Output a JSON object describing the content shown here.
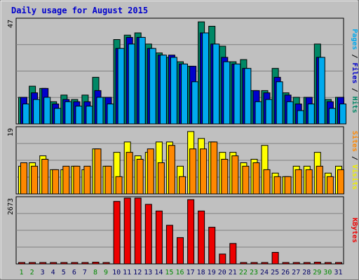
{
  "chart_data": {
    "type": "bar",
    "title": "Daily usage for August 2015",
    "categories": [
      "1",
      "2",
      "3",
      "4",
      "5",
      "6",
      "7",
      "8",
      "9",
      "10",
      "11",
      "12",
      "13",
      "14",
      "15",
      "16",
      "17",
      "18",
      "19",
      "20",
      "21",
      "22",
      "23",
      "24",
      "25",
      "26",
      "27",
      "28",
      "29",
      "30",
      "31"
    ],
    "weekend_days": [
      1,
      2,
      8,
      9,
      15,
      16,
      22,
      23,
      29,
      30
    ],
    "panels": [
      {
        "name": "hits-files-pages",
        "ymax_label": "47",
        "ymax": 47,
        "right_label_parts": [
          {
            "text": "Pages",
            "color": "#00aaee"
          },
          {
            "text": " / ",
            "color": "#000000"
          },
          {
            "text": "Files",
            "color": "#0000cc"
          },
          {
            "text": " / ",
            "color": "#000000"
          },
          {
            "text": "Hits",
            "color": "#008866"
          }
        ],
        "series": [
          {
            "name": "Hits",
            "color": "#008866",
            "values": [
              12,
              17,
              16,
              10,
              13,
              11,
              13,
              21,
              12,
              38,
              40,
              41,
              36,
              32,
              30,
              28,
              26,
              46,
              44,
              35,
              28,
              29,
              15,
              15,
              25,
              14,
              12,
              12,
              36,
              11,
              12
            ]
          },
          {
            "name": "Files",
            "color": "#0000cc",
            "values": [
              12,
              14,
              16,
              9,
              11,
              10,
              10,
              15,
              12,
              34,
              39,
              39,
              34,
              31,
              31,
              27,
              26,
              41,
              36,
              30,
              27,
              25,
              15,
              14,
              21,
              13,
              9,
              12,
              30,
              10,
              12
            ]
          },
          {
            "name": "Pages",
            "color": "#00aaee",
            "values": [
              9,
              11,
              12,
              7,
              10,
              8,
              8,
              12,
              9,
              34,
              36,
              39,
              34,
              31,
              30,
              27,
              19,
              41,
              36,
              28,
              27,
              25,
              10,
              11,
              19,
              10,
              6,
              9,
              30,
              7,
              9
            ]
          }
        ]
      },
      {
        "name": "visits-sites",
        "ymax_label": "19",
        "ymax": 19,
        "right_label_parts": [
          {
            "text": "Sites",
            "color": "#ff8800"
          },
          {
            "text": " / ",
            "color": "#000000"
          },
          {
            "text": "Visits",
            "color": "#eeee00"
          }
        ],
        "series": [
          {
            "name": "Visits",
            "color": "#ffff00",
            "values": [
              8,
              9,
              11,
              7,
              7,
              8,
              7,
              13,
              8,
              12,
              15,
              11,
              12,
              15,
              15,
              8,
              18,
              16,
              15,
              12,
              12,
              9,
              10,
              14,
              6,
              5,
              8,
              8,
              12,
              6,
              8
            ]
          },
          {
            "name": "Sites",
            "color": "#ff8800",
            "values": [
              9,
              8,
              10,
              7,
              8,
              8,
              8,
              13,
              8,
              5,
              12,
              10,
              13,
              9,
              14,
              5,
              13,
              13,
              15,
              10,
              11,
              8,
              9,
              7,
              5,
              5,
              7,
              7,
              8,
              5,
              7
            ]
          }
        ]
      },
      {
        "name": "kbytes",
        "ymax_label": "2673",
        "ymax": 2673,
        "right_label_parts": [
          {
            "text": "KBytes",
            "color": "#ee0000"
          }
        ],
        "series": [
          {
            "name": "KBytes",
            "color": "#ee0000",
            "values": [
              30,
              30,
              30,
              30,
              30,
              30,
              30,
              70,
              30,
              2540,
              2673,
              2673,
              2420,
              2150,
              1570,
              1070,
              2610,
              2150,
              1490,
              400,
              830,
              30,
              30,
              30,
              470,
              30,
              30,
              30,
              70,
              30,
              30
            ]
          }
        ]
      }
    ]
  }
}
